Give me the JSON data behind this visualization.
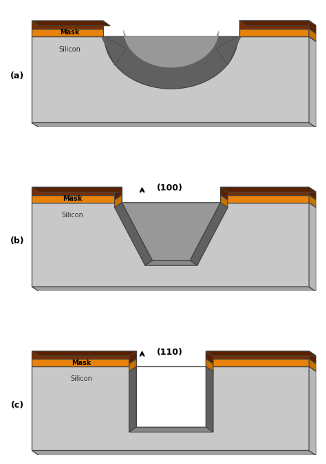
{
  "bg_color": "#ffffff",
  "silicon_color": "#c8c8c8",
  "silicon_dark_color": "#a0a0a0",
  "silicon_right_color": "#b8b8b8",
  "silicon_bottom_color": "#a8a8a8",
  "mask_orange": "#e8820a",
  "mask_brown": "#7a2e00",
  "mask_inner_brown": "#6b2a00",
  "mask_side_orange": "#c87000",
  "mask_side_brown": "#5a2000",
  "etch_dark": "#606060",
  "etch_mid": "#989898",
  "etch_bottom": "#888888",
  "white": "#ffffff",
  "outline_color": "#444444",
  "label_a": "(a)",
  "label_b": "(b)",
  "label_c": "(c)",
  "label_100": "(100)",
  "label_110": "(110)",
  "mask_text": "Mask",
  "silicon_text": "Silicon"
}
